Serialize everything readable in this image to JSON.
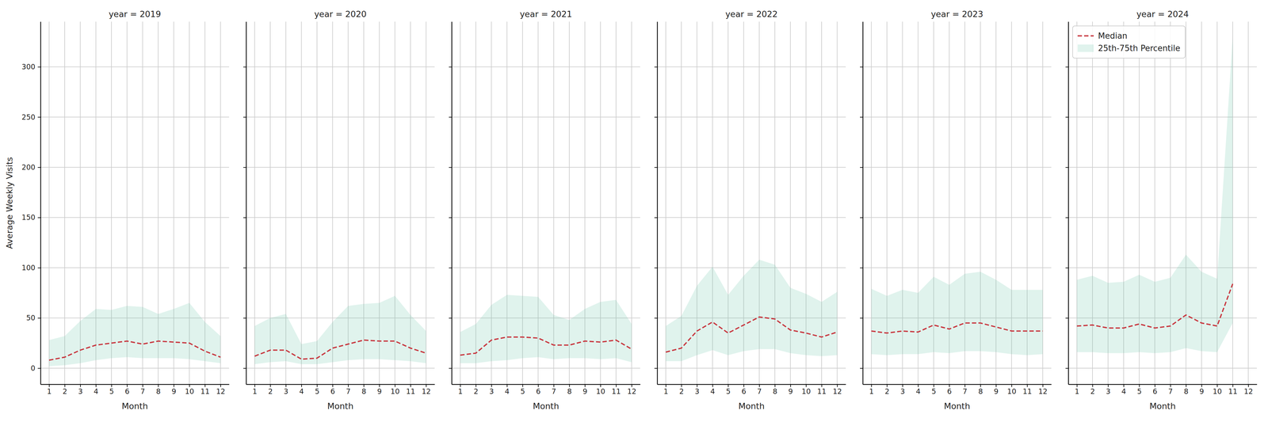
{
  "chart_data": [
    {
      "type": "line",
      "title": "year = 2019",
      "x_label": "Month",
      "y_label": "Average Weekly Visits",
      "x": [
        1,
        2,
        3,
        4,
        5,
        6,
        7,
        8,
        9,
        10,
        11,
        12
      ],
      "xlim": [
        0.45,
        12.55
      ],
      "xticks": [
        1,
        2,
        3,
        4,
        5,
        6,
        7,
        8,
        9,
        10,
        11,
        12
      ],
      "ylim": [
        -16,
        345
      ],
      "yticks": [
        0,
        50,
        100,
        150,
        200,
        250,
        300
      ],
      "grid": true,
      "series": [
        {
          "name": "Median",
          "type": "line",
          "line_style": "dashed",
          "color": "#c8373f",
          "values": [
            8,
            11,
            18,
            23,
            25,
            27,
            24,
            27,
            26,
            25,
            17,
            11
          ]
        },
        {
          "name": "25th-75th Percentile",
          "type": "area",
          "color": "#66c2a5",
          "low": [
            2,
            3,
            5,
            8,
            10,
            11,
            10,
            10,
            10,
            9,
            7,
            5
          ],
          "high": [
            28,
            32,
            47,
            59,
            58,
            62,
            61,
            54,
            59,
            65,
            46,
            32
          ]
        }
      ]
    },
    {
      "type": "line",
      "title": "year = 2020",
      "x_label": "Month",
      "tick_labels": "x",
      "x": [
        1,
        2,
        3,
        4,
        5,
        6,
        7,
        8,
        9,
        10,
        11,
        12
      ],
      "xlim": [
        0.45,
        12.55
      ],
      "xticks": [
        1,
        2,
        3,
        4,
        5,
        6,
        7,
        8,
        9,
        10,
        11,
        12
      ],
      "ylim": [
        -16,
        345
      ],
      "yticks": [
        0,
        50,
        100,
        150,
        200,
        250,
        300
      ],
      "grid": true,
      "series": [
        {
          "name": "Median",
          "type": "line",
          "line_style": "dashed",
          "color": "#c8373f",
          "values": [
            12,
            18,
            18,
            9,
            10,
            20,
            24,
            28,
            27,
            27,
            20,
            15
          ]
        },
        {
          "name": "25th-75th Percentile",
          "type": "area",
          "color": "#66c2a5",
          "low": [
            4,
            6,
            7,
            4,
            4,
            6,
            8,
            9,
            9,
            8,
            7,
            5
          ],
          "high": [
            42,
            50,
            54,
            24,
            27,
            46,
            62,
            64,
            65,
            72,
            53,
            37
          ]
        }
      ]
    },
    {
      "type": "line",
      "title": "year = 2021",
      "x_label": "Month",
      "tick_labels": "x",
      "x": [
        1,
        2,
        3,
        4,
        5,
        6,
        7,
        8,
        9,
        10,
        11,
        12
      ],
      "xlim": [
        0.45,
        12.55
      ],
      "xticks": [
        1,
        2,
        3,
        4,
        5,
        6,
        7,
        8,
        9,
        10,
        11,
        12
      ],
      "ylim": [
        -16,
        345
      ],
      "yticks": [
        0,
        50,
        100,
        150,
        200,
        250,
        300
      ],
      "grid": true,
      "series": [
        {
          "name": "Median",
          "type": "line",
          "line_style": "dashed",
          "color": "#c8373f",
          "values": [
            13,
            15,
            28,
            31,
            31,
            30,
            23,
            23,
            27,
            26,
            28,
            19
          ]
        },
        {
          "name": "25th-75th Percentile",
          "type": "area",
          "color": "#66c2a5",
          "low": [
            5,
            5,
            7,
            8,
            10,
            11,
            9,
            10,
            10,
            9,
            10,
            6
          ],
          "high": [
            36,
            44,
            63,
            73,
            72,
            71,
            53,
            48,
            59,
            66,
            68,
            44
          ]
        }
      ]
    },
    {
      "type": "line",
      "title": "year = 2022",
      "x_label": "Month",
      "tick_labels": "x",
      "x": [
        1,
        2,
        3,
        4,
        5,
        6,
        7,
        8,
        9,
        10,
        11,
        12
      ],
      "xlim": [
        0.45,
        12.55
      ],
      "xticks": [
        1,
        2,
        3,
        4,
        5,
        6,
        7,
        8,
        9,
        10,
        11,
        12
      ],
      "ylim": [
        -16,
        345
      ],
      "yticks": [
        0,
        50,
        100,
        150,
        200,
        250,
        300
      ],
      "grid": true,
      "series": [
        {
          "name": "Median",
          "type": "line",
          "line_style": "dashed",
          "color": "#c8373f",
          "values": [
            16,
            20,
            37,
            46,
            35,
            43,
            51,
            49,
            38,
            35,
            31,
            36
          ]
        },
        {
          "name": "25th-75th Percentile",
          "type": "area",
          "color": "#66c2a5",
          "low": [
            7,
            7,
            13,
            18,
            13,
            17,
            19,
            19,
            15,
            13,
            12,
            13
          ],
          "high": [
            42,
            52,
            82,
            101,
            73,
            92,
            108,
            103,
            80,
            74,
            66,
            76
          ]
        }
      ]
    },
    {
      "type": "line",
      "title": "year = 2023",
      "x_label": "Month",
      "tick_labels": "x",
      "x": [
        1,
        2,
        3,
        4,
        5,
        6,
        7,
        8,
        9,
        10,
        11,
        12
      ],
      "xlim": [
        0.45,
        12.55
      ],
      "xticks": [
        1,
        2,
        3,
        4,
        5,
        6,
        7,
        8,
        9,
        10,
        11,
        12
      ],
      "ylim": [
        -16,
        345
      ],
      "yticks": [
        0,
        50,
        100,
        150,
        200,
        250,
        300
      ],
      "grid": true,
      "series": [
        {
          "name": "Median",
          "type": "line",
          "line_style": "dashed",
          "color": "#c8373f",
          "values": [
            37,
            35,
            37,
            36,
            43,
            39,
            45,
            45,
            41,
            37,
            37,
            37
          ]
        },
        {
          "name": "25th-75th Percentile",
          "type": "area",
          "color": "#66c2a5",
          "low": [
            14,
            13,
            14,
            14,
            16,
            15,
            17,
            17,
            16,
            14,
            13,
            14
          ],
          "high": [
            79,
            72,
            78,
            75,
            91,
            83,
            94,
            96,
            88,
            78,
            78,
            78
          ]
        }
      ]
    },
    {
      "type": "line",
      "title": "year = 2024",
      "x_label": "Month",
      "tick_labels": "x",
      "legend": "upper left",
      "x": [
        1,
        2,
        3,
        4,
        5,
        6,
        7,
        8,
        9,
        10,
        11
      ],
      "xlim": [
        0.45,
        12.55
      ],
      "xticks": [
        1,
        2,
        3,
        4,
        5,
        6,
        7,
        8,
        9,
        10,
        11,
        12
      ],
      "ylim": [
        -16,
        345
      ],
      "yticks": [
        0,
        50,
        100,
        150,
        200,
        250,
        300
      ],
      "grid": true,
      "series": [
        {
          "name": "Median",
          "type": "line",
          "line_style": "dashed",
          "color": "#c8373f",
          "values": [
            42,
            43,
            40,
            40,
            44,
            40,
            42,
            53,
            45,
            42,
            84
          ]
        },
        {
          "name": "25th-75th Percentile",
          "type": "area",
          "color": "#66c2a5",
          "low": [
            16,
            16,
            15,
            15,
            16,
            15,
            16,
            20,
            17,
            16,
            45
          ],
          "high": [
            88,
            92,
            85,
            86,
            93,
            86,
            90,
            113,
            96,
            89,
            330
          ]
        }
      ]
    }
  ]
}
